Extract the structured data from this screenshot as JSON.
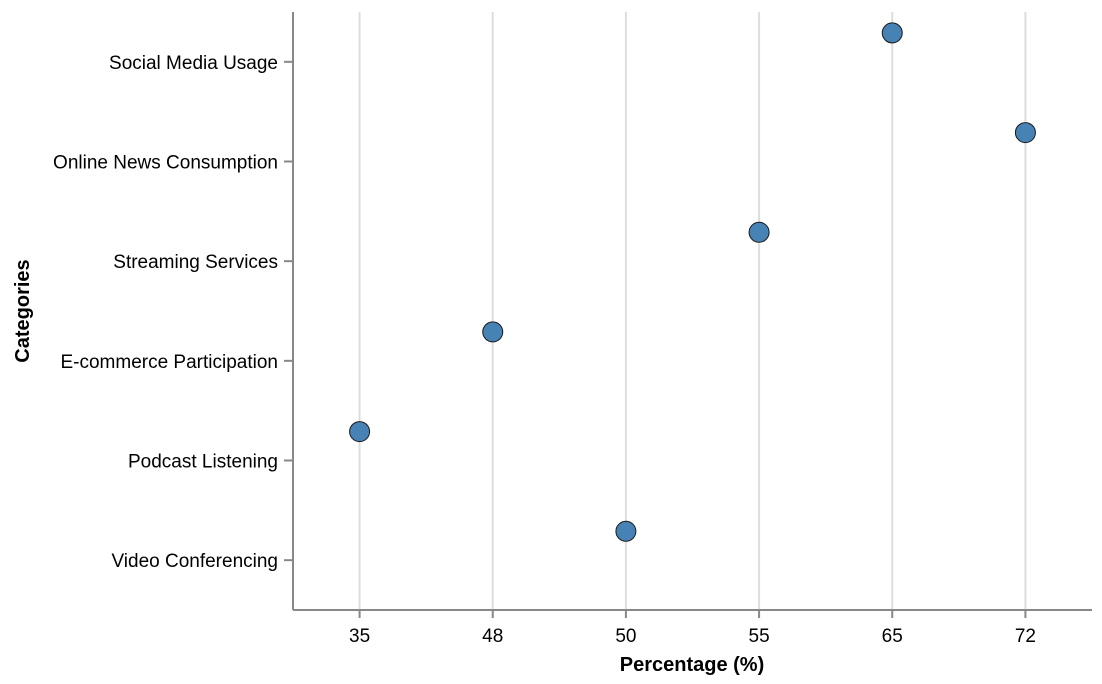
{
  "chart_data": {
    "type": "scatter",
    "xlabel": "Percentage (%)",
    "ylabel": "Categories",
    "x_axis": "ordinal",
    "x_ticks": [
      "35",
      "48",
      "50",
      "55",
      "65",
      "72"
    ],
    "categories": [
      "Social Media Usage",
      "Online News Consumption",
      "Streaming Services",
      "E-commerce Participation",
      "Podcast Listening",
      "Video Conferencing"
    ],
    "values": [
      65,
      72,
      55,
      48,
      35,
      50
    ],
    "grid": "vertical",
    "legend": "none",
    "point_color": "#4682b4",
    "point_stroke": "#1a1a1a",
    "axis_color": "#888888",
    "grid_color": "#dddddd"
  }
}
